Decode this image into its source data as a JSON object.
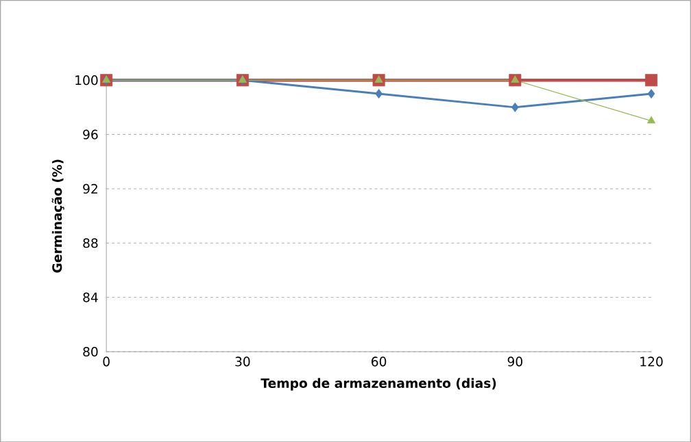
{
  "chart_data": {
    "type": "line",
    "xlabel": "Tempo de armazenamento (dias)",
    "ylabel": "Germinação (%)",
    "x": [
      0,
      30,
      60,
      90,
      120
    ],
    "series": [
      {
        "color": "#4a7ebb",
        "marker": "diamond",
        "values": [
          100,
          100,
          99,
          98,
          99
        ]
      },
      {
        "color": "#be4b48",
        "marker": "square",
        "values": [
          100,
          100,
          100,
          100,
          100
        ]
      },
      {
        "color": "#98b954",
        "marker": "triangle",
        "values": [
          100,
          100,
          100,
          100,
          97
        ]
      }
    ],
    "xlim": [
      0,
      120
    ],
    "xticks": [
      0,
      30,
      60,
      90,
      120
    ],
    "ylim": [
      80,
      100
    ],
    "yticks": [
      80,
      84,
      88,
      92,
      96,
      100
    ],
    "grid": "y",
    "line_style": "solid"
  }
}
